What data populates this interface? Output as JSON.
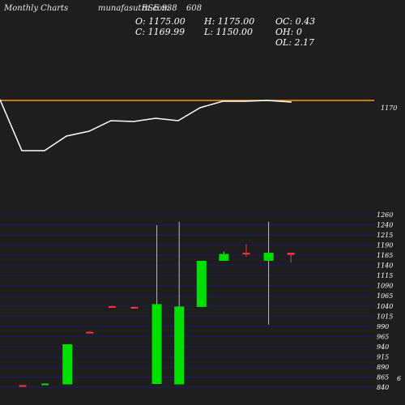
{
  "header": {
    "site": "Monthly Charts",
    "site_url": "munafasutra.com",
    "symbol": "BSE 938",
    "code": "608"
  },
  "ohlc": {
    "open": "O: 1175.00",
    "high": "H: 1175.00",
    "oc": "OC: 0.43",
    "close": "C: 1169.99",
    "low": "L: 1150.00",
    "oh": "OH: 0",
    "ol": "OL: 2.17"
  },
  "colors": {
    "background": "#1e1e1e",
    "up": "#00e000",
    "down": "#ff3333",
    "level_line": "#ff9900",
    "overlay_line": "#ffffff",
    "grid": "#1a1a6e"
  },
  "chart_data": {
    "type": "candlestick",
    "title": "",
    "level_line": {
      "value": 1170,
      "label": "1170"
    },
    "ylim": [
      840,
      1270
    ],
    "y_ticks": [
      "1260",
      "1240",
      "1215",
      "1190",
      "1165",
      "1140",
      "1115",
      "1090",
      "1065",
      "1040",
      "1015",
      "990",
      "965",
      "940",
      "915",
      "890",
      "865",
      "840"
    ],
    "extra_axis_text": "6",
    "candles": [
      {
        "open": 845,
        "high": 845,
        "low": 844,
        "close": 844
      },
      {
        "open": 847,
        "high": 849,
        "low": 847,
        "close": 849
      },
      {
        "open": 847,
        "high": 947,
        "low": 847,
        "close": 947
      },
      {
        "open": 978,
        "high": 980,
        "low": 976,
        "close": 977
      },
      {
        "open": 1042,
        "high": 1043,
        "low": 1040,
        "close": 1041
      },
      {
        "open": 1040,
        "high": 1041,
        "low": 1038,
        "close": 1039
      },
      {
        "open": 848,
        "high": 1244,
        "low": 848,
        "close": 1047
      },
      {
        "open": 847,
        "high": 1252,
        "low": 847,
        "close": 1041
      },
      {
        "open": 1040,
        "high": 1155,
        "low": 1040,
        "close": 1155
      },
      {
        "open": 1155,
        "high": 1178,
        "low": 1155,
        "close": 1172
      },
      {
        "open": 1175,
        "high": 1196,
        "low": 1165,
        "close": 1171
      },
      {
        "open": 1155,
        "high": 1252,
        "low": 996,
        "close": 1175
      },
      {
        "open": 1175,
        "high": 1175,
        "low": 1150,
        "close": 1170
      }
    ]
  }
}
